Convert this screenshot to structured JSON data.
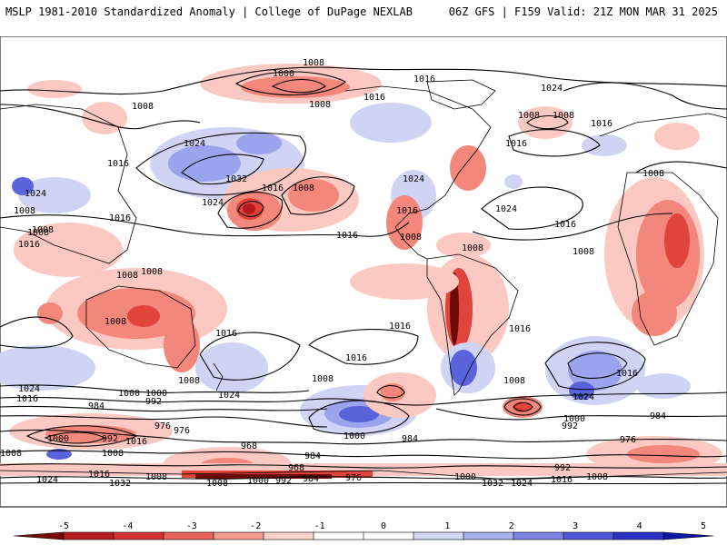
{
  "header": {
    "left": "MSLP 1981-2010 Standardized Anomaly | College of DuPage NEXLAB",
    "right": "06Z GFS | F159 Valid: 21Z MON MAR 31 2025"
  },
  "isobar_labels": [
    "1008",
    "1000",
    "1008",
    "1016",
    "1024",
    "1008",
    "1016",
    "1008",
    "1016",
    "1024",
    "1032",
    "1024",
    "1016",
    "1008",
    "1016",
    "1024",
    "1008",
    "1008",
    "1016",
    "1024",
    "1016",
    "1008",
    "1016",
    "1008",
    "1008",
    "1016",
    "1008",
    "1008",
    "1008",
    "1016",
    "1016",
    "1024",
    "1016",
    "1008",
    "1016",
    "1008",
    "1000",
    "992",
    "1024",
    "1016",
    "1008",
    "1000",
    "1008",
    "1016",
    "1024",
    "1016",
    "1008",
    "1000",
    "992",
    "984",
    "984",
    "1000",
    "992",
    "1016",
    "976",
    "976",
    "1008",
    "968",
    "984",
    "1000",
    "968",
    "976",
    "1024",
    "1008",
    "1000",
    "992",
    "984",
    "976",
    "1000",
    "1032",
    "1024",
    "1016",
    "1008",
    "1032",
    "984",
    "992",
    "1008",
    "1016",
    "1008",
    "1016",
    "1008",
    "1024"
  ],
  "colorbar": {
    "ticks": [
      "-5",
      "-4",
      "-3",
      "-2",
      "-1",
      "0",
      "1",
      "2",
      "3",
      "4",
      "5"
    ],
    "colors": [
      "#7a0a0a",
      "#b41e1e",
      "#d73232",
      "#e8635a",
      "#f39b8f",
      "#fcd2cb",
      "#ffffff",
      "#ffffff",
      "#d4d8f5",
      "#a8b0ee",
      "#7c84e4",
      "#4f57d8",
      "#2a32c8",
      "#0d14a8"
    ]
  },
  "map_colors": {
    "land": "#ffffff",
    "pos1": "#fbc9c1",
    "pos2": "#f3877b",
    "pos3": "#e0443b",
    "pos4": "#b31a1a",
    "pos5": "#6e0a0a",
    "neg1": "#cfd4f5",
    "neg2": "#9aa3ec",
    "neg3": "#5a62dc",
    "neg4": "#2a31c3"
  }
}
